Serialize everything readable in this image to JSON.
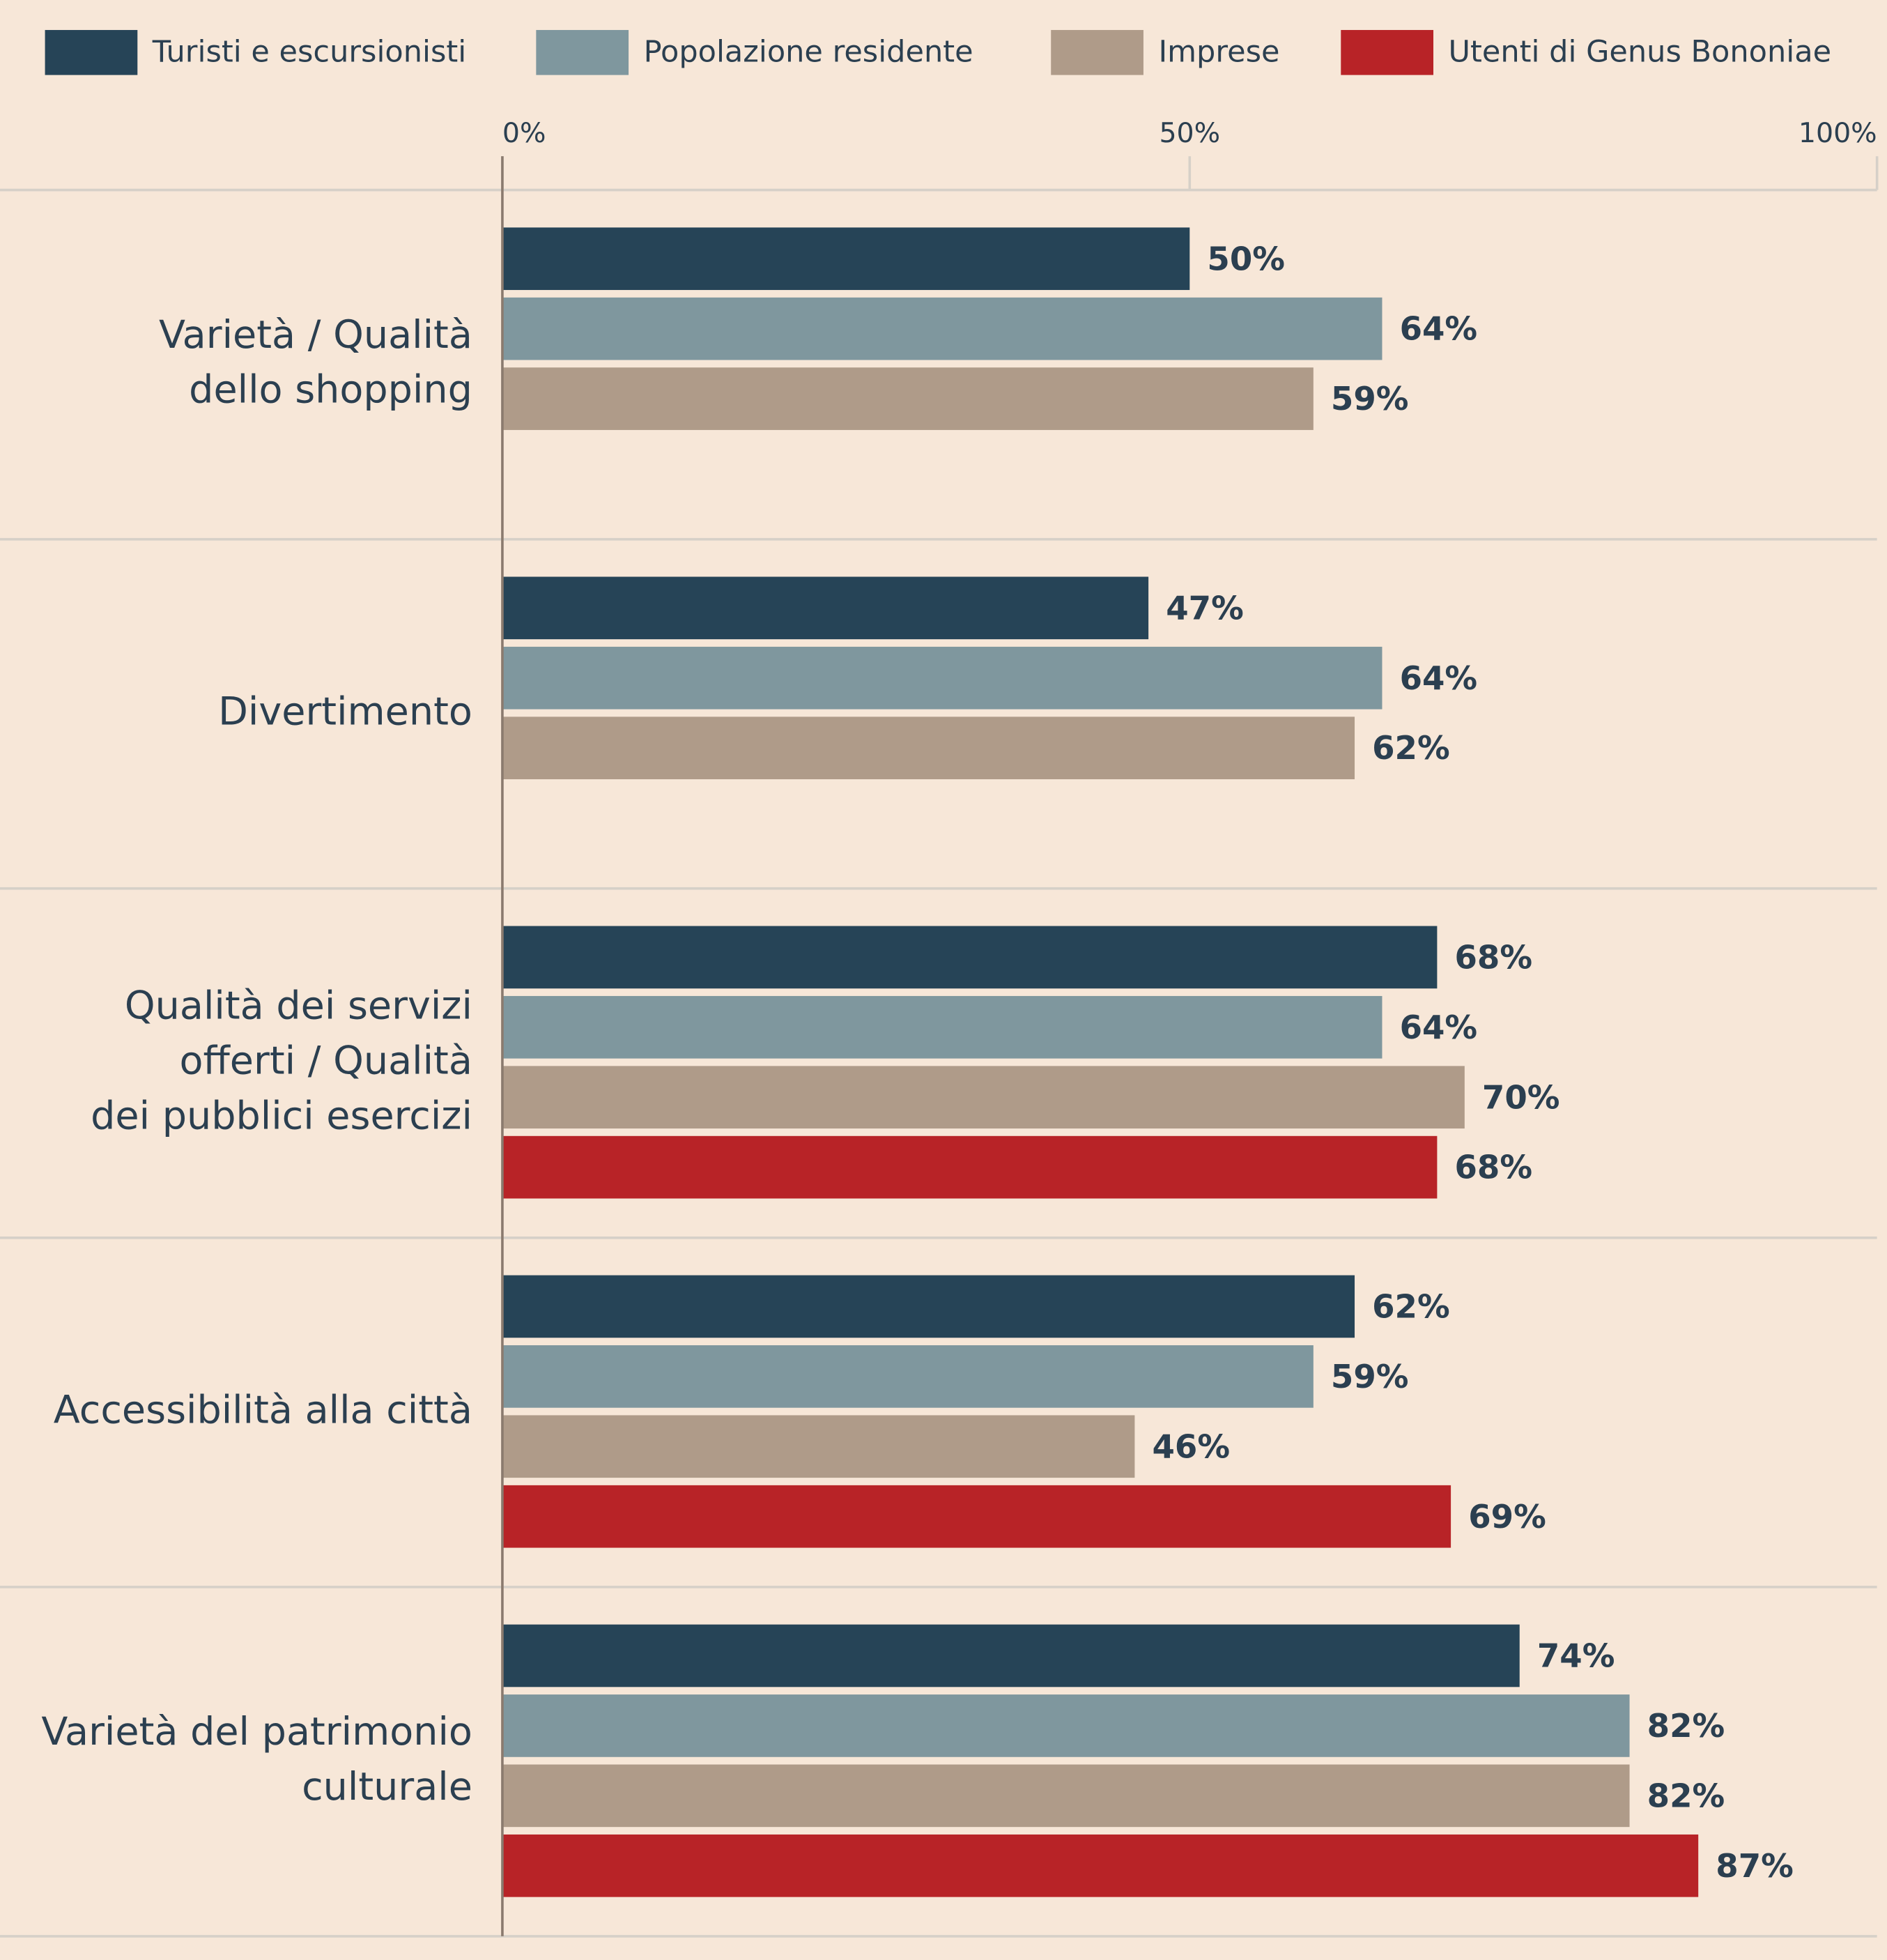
{
  "chart_data": {
    "type": "hbar",
    "categories": [
      [
        "Varietà / Qualità",
        "dello shopping"
      ],
      [
        "Divertimento"
      ],
      [
        "Qualità dei servizi",
        "offerti / Qualità",
        "dei pubblici esercizi"
      ],
      [
        "Accessibilità alla città"
      ],
      [
        "Varietà del patrimonio",
        "culturale"
      ]
    ],
    "series": [
      {
        "name": "Turisti e escursionisti",
        "color": "#264457",
        "values": [
          50,
          47,
          68,
          62,
          74
        ],
        "value_labels": [
          "50%",
          "47%",
          "68%",
          "62%",
          "74%"
        ]
      },
      {
        "name": "Popolazione residente",
        "color": "#7f979e",
        "values": [
          64,
          64,
          64,
          59,
          82
        ],
        "value_labels": [
          "64%",
          "64%",
          "64%",
          "59%",
          "82%"
        ]
      },
      {
        "name": "Imprese",
        "color": "#af9b89",
        "values": [
          59,
          62,
          70,
          46,
          82
        ],
        "value_labels": [
          "59%",
          "62%",
          "70%",
          "46%",
          "82%"
        ]
      },
      {
        "name": "Utenti di Genus Bononiae",
        "color": "#b82327",
        "values": [
          null,
          null,
          68,
          69,
          87
        ],
        "value_labels": [
          null,
          null,
          "68%",
          "69%",
          "87%"
        ]
      }
    ],
    "xlim": [
      0,
      100
    ],
    "xticks": [
      {
        "value": 0,
        "label": "0%"
      },
      {
        "value": 50,
        "label": "50%"
      },
      {
        "value": 100,
        "label": "100%"
      }
    ],
    "legend": "top"
  }
}
